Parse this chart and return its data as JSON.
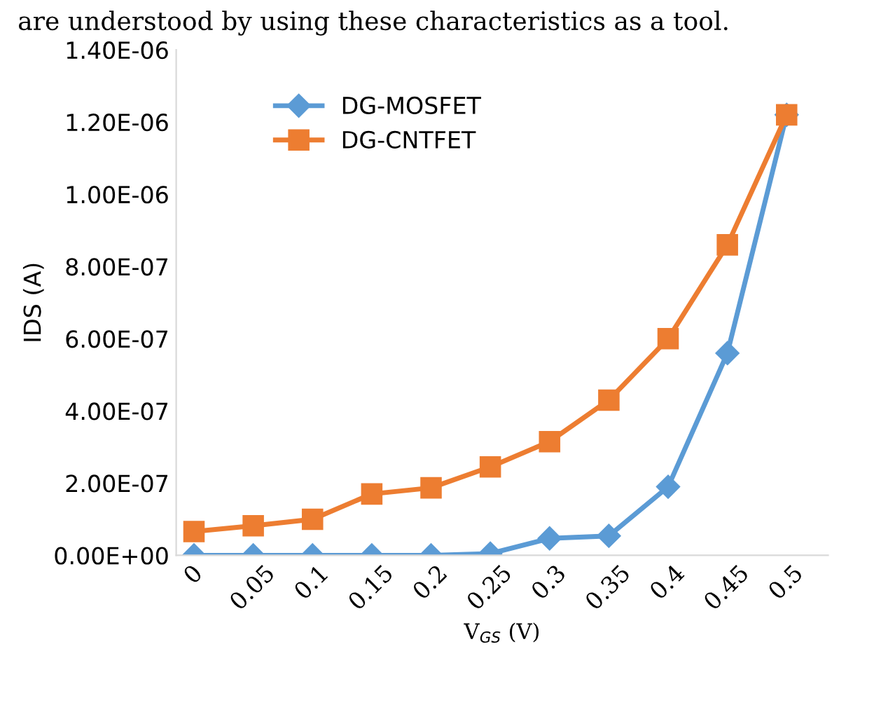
{
  "chart_data": {
    "type": "line",
    "annotations": [
      "are understood by using these characteristics as a tool."
    ],
    "xlabel": "V$_{GS}$ (V)",
    "ylabel": "IDS (A)",
    "categories": [
      "0",
      "0.05",
      "0.1",
      "0.15",
      "0.2",
      "0.25",
      "0.3",
      "0.35",
      "0.4",
      "0.45",
      "0.5"
    ],
    "series": [
      {
        "name": "DG-MOSFET",
        "color": "#5b9bd5",
        "marker": "diamond",
        "values": [
          0,
          0,
          0,
          0,
          0,
          5e-09,
          4.7e-08,
          5.4e-08,
          1.9e-07,
          5.6e-07,
          1.22e-06
        ]
      },
      {
        "name": "DG-CNTFET",
        "color": "#ed7d31",
        "marker": "square",
        "values": [
          6.6e-08,
          8.2e-08,
          1e-07,
          1.7e-07,
          1.87e-07,
          2.45e-07,
          3.15e-07,
          4.3e-07,
          6e-07,
          8.6e-07,
          1.22e-06
        ]
      }
    ],
    "ylim": [
      0,
      1.4e-06
    ],
    "yticks": [
      {
        "value": 0,
        "label": "0.00E+00"
      },
      {
        "value": 2e-07,
        "label": "2.00E-07"
      },
      {
        "value": 4e-07,
        "label": "4.00E-07"
      },
      {
        "value": 6e-07,
        "label": "6.00E-07"
      },
      {
        "value": 8e-07,
        "label": "8.00E-07"
      },
      {
        "value": 1e-06,
        "label": "1.00E-06"
      },
      {
        "value": 1.2e-06,
        "label": "1.20E-06"
      },
      {
        "value": 1.4e-06,
        "label": "1.40E-06"
      }
    ],
    "grid": false,
    "legend": "top left",
    "line_style": "solid"
  }
}
